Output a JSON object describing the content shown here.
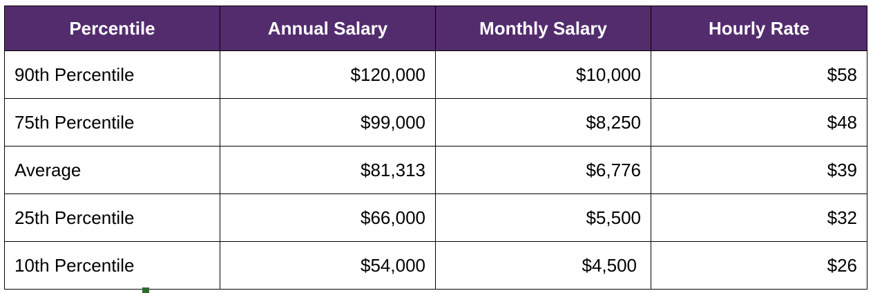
{
  "colors": {
    "header_background": "#532c6e",
    "header_text": "#ffffff",
    "cell_text": "#000000",
    "border": "#000000",
    "selection_handle": "#2e6b2e"
  },
  "table": {
    "headers": [
      "Percentile",
      "Annual Salary",
      "Monthly Salary",
      "Hourly Rate"
    ],
    "rows": [
      [
        "90th Percentile",
        "$120,000",
        "$10,000",
        "$58"
      ],
      [
        "75th Percentile",
        "$99,000",
        "$8,250",
        "$48"
      ],
      [
        "Average",
        "$81,313",
        "$6,776",
        "$39"
      ],
      [
        "25th Percentile",
        "$66,000",
        "$5,500",
        "$32"
      ],
      [
        "10th Percentile",
        "$54,000",
        "$4,500",
        "$26"
      ]
    ]
  }
}
